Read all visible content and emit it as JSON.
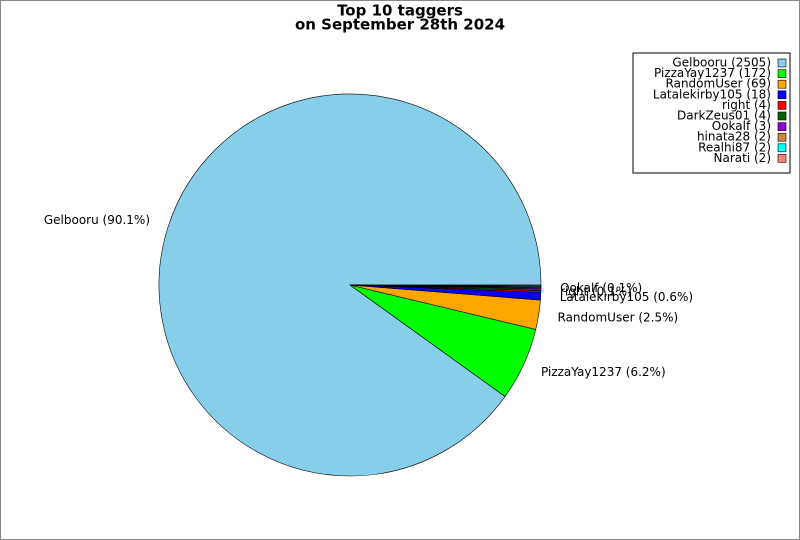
{
  "chart_data": {
    "type": "pie",
    "title": [
      "Top 10 taggers",
      "on September 28th 2024"
    ],
    "categories": [
      "Gelbooru (2505)",
      "PizzaYay1237 (172)",
      "RandomUser (69)",
      "Latalekirby105 (18)",
      "right (4)",
      "DarkZeus01 (4)",
      "Ookalf (3)",
      "hinata28 (2)",
      "Realhi87 (2)",
      "Narati (2)"
    ],
    "values": [
      2505,
      172,
      69,
      18,
      4,
      4,
      3,
      2,
      2,
      2
    ],
    "value_labels": [
      "Gelbooru (90.1%)",
      "PizzaYay1237 (6.2%)",
      "RandomUser (2.5%)",
      "Latalekirby105 (0.6%)",
      "right (0.1%)",
      null,
      "Ookalf (0.1%)",
      null,
      null,
      null
    ],
    "colors": [
      "#87ceeb",
      "#00ff00",
      "#ffa500",
      "#0000ff",
      "#ff0000",
      "#006400",
      "#9400d3",
      "#cd853f",
      "#00ffff",
      "#fa8072"
    ],
    "legend": "upper right"
  }
}
